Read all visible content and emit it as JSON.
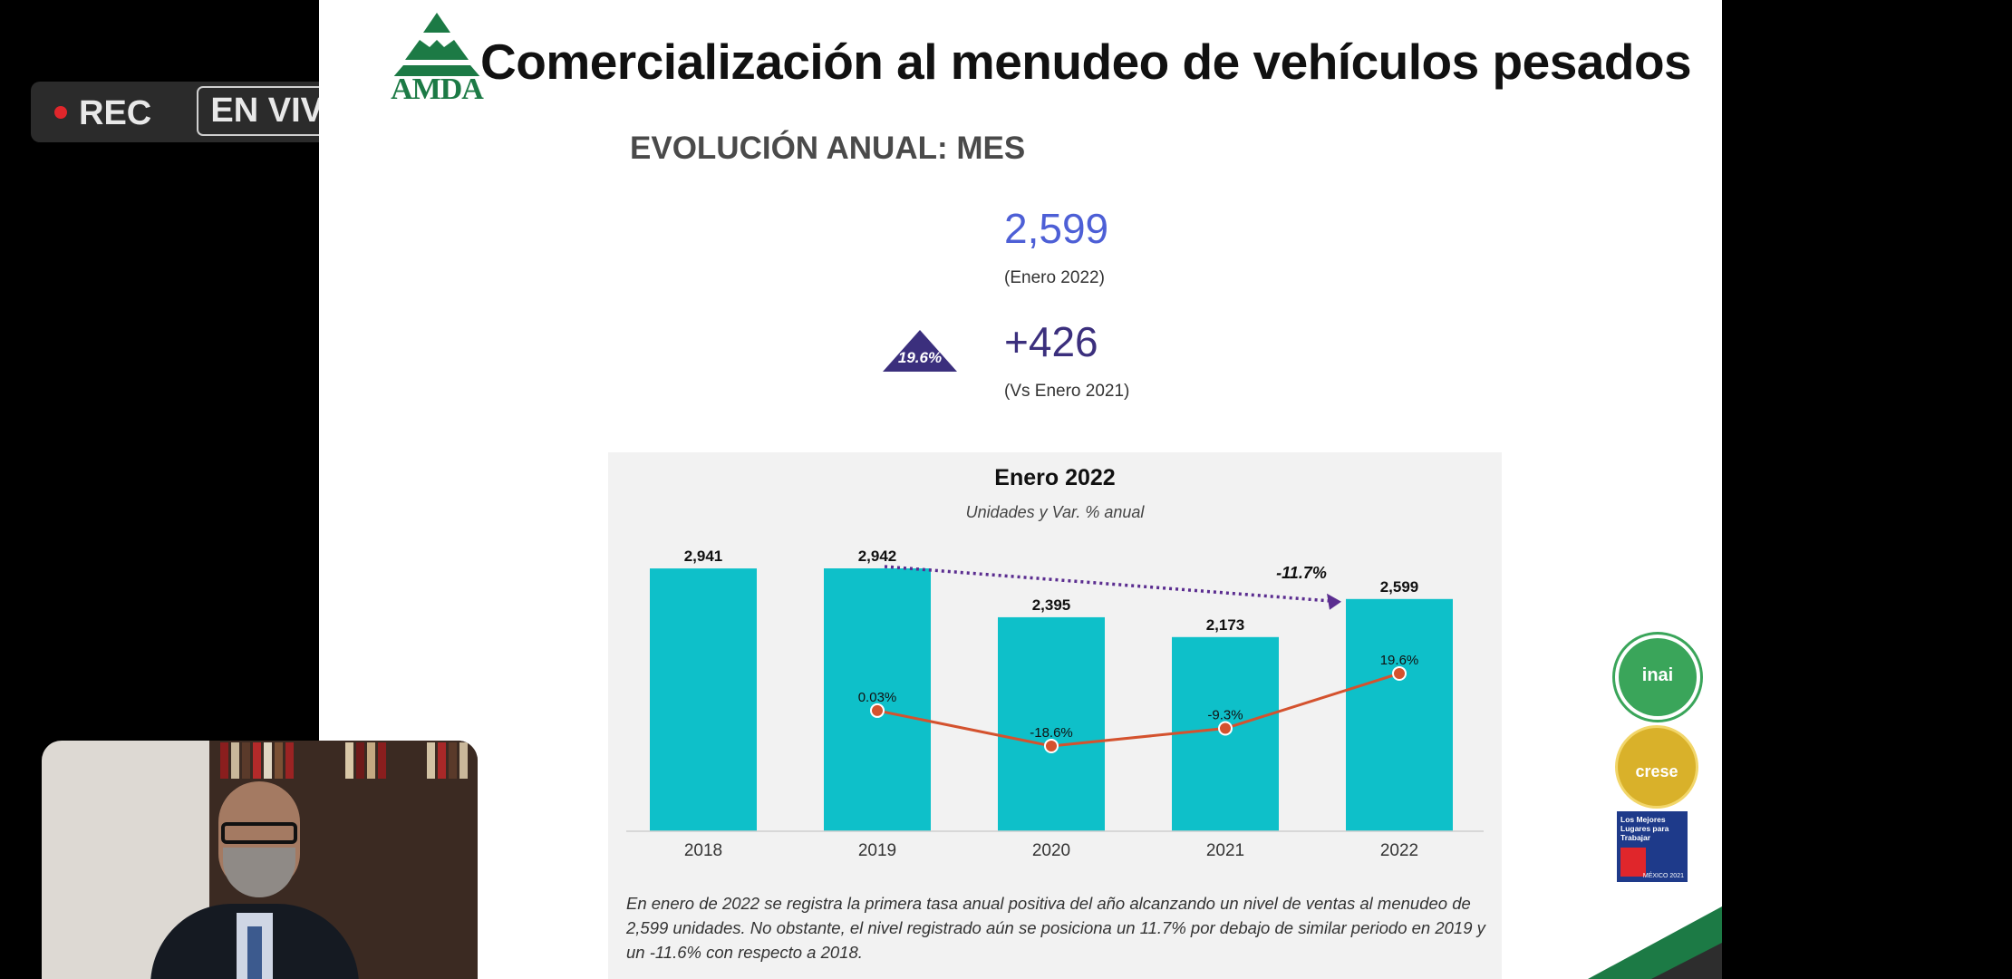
{
  "overlay": {
    "rec_label": "REC",
    "live_label": "EN VIVO"
  },
  "slide": {
    "logo_text": "AMDA",
    "title": "Comercialización al menudeo de vehículos pesados",
    "subtitle": "EVOLUCIÓN ANUAL: MES",
    "kpi": {
      "value": "2,599",
      "value_caption": "(Enero 2022)",
      "delta": "+426",
      "delta_caption": "(Vs Enero 2021)",
      "delta_pct": "19.6%"
    },
    "colors": {
      "bar": "#0ec0c9",
      "line": "#d4522e",
      "kpi_value": "#4d5fd6",
      "kpi_delta": "#3b2f7d"
    },
    "note": "En enero de 2022 se registra la primera tasa anual positiva del año alcanzando un nivel de ventas al menudeo de 2,599 unidades. No obstante, el nivel registrado  aún se posiciona un 11.7% por debajo de similar periodo en 2019 y un -11.6% con respecto a 2018.",
    "badges": {
      "inai": "inai",
      "crese": "crese",
      "gptw": "Los Mejores Lugares para Trabajar",
      "gptw_year": "MÉXICO 2021"
    }
  },
  "chart_data": {
    "type": "bar",
    "title": "Enero 2022",
    "subtitle": "Unidades y Var. % anual",
    "categories": [
      "2018",
      "2019",
      "2020",
      "2021",
      "2022"
    ],
    "series": [
      {
        "values": [
          2941,
          2942,
          2395,
          2173,
          2599
        ],
        "labels": [
          "2,941",
          "2,942",
          "2,395",
          "2,173",
          "2,599"
        ]
      },
      {
        "type": "line",
        "values": [
          null,
          0.03,
          -18.6,
          -9.3,
          19.6
        ],
        "labels": [
          "",
          "0.03%",
          "-18.6%",
          "-9.3%",
          "19.6%"
        ]
      }
    ],
    "annotation": {
      "from": "2019",
      "to": "2022",
      "label": "-11.7%"
    },
    "ylim": [
      0,
      3000
    ],
    "grid": false,
    "legend": "none"
  }
}
